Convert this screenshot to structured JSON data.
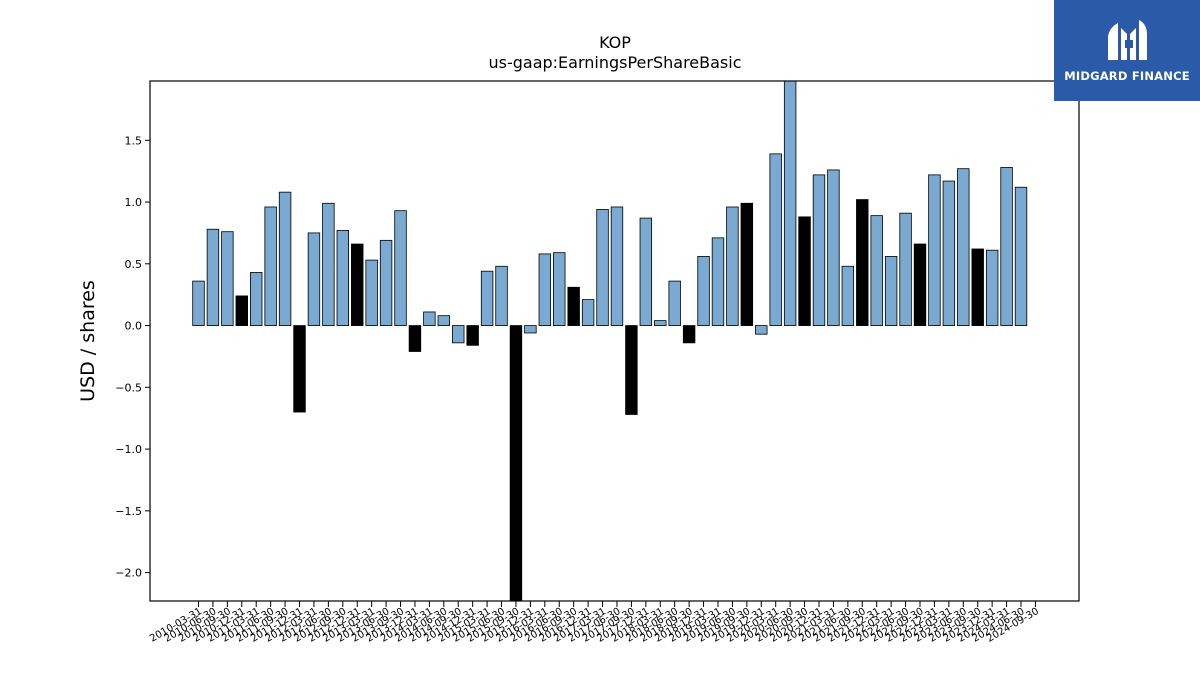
{
  "logo": {
    "name": "MIDGARD FINANCE",
    "color": "#2a5aa8"
  },
  "chart_data": {
    "type": "bar",
    "title": "KOP",
    "subtitle": "us-gaap:EarningsPerShareBasic",
    "xlabel": "",
    "ylabel": "USD / shares",
    "ylim": [
      -2.23,
      1.98
    ],
    "yticks": [
      -2.0,
      -1.5,
      -1.0,
      -0.5,
      0.0,
      0.5,
      1.0,
      1.5
    ],
    "ytick_labels": [
      "−2.0",
      "−1.5",
      "−1.0",
      "−0.5",
      "0.0",
      "0.5",
      "1.0",
      "1.5"
    ],
    "grid": false,
    "colors": {
      "quarterly": "#7aa9d1",
      "annual": "#000000",
      "edge": "#000000"
    },
    "categories": [
      "2010-03-31",
      "2010-06-30",
      "2010-09-30",
      "2010-12-31",
      "2011-03-31",
      "2011-06-30",
      "2011-09-30",
      "2011-12-31",
      "2012-03-31",
      "2012-06-30",
      "2012-09-30",
      "2012-12-31",
      "2013-03-31",
      "2013-06-30",
      "2013-09-30",
      "2013-12-31",
      "2014-03-31",
      "2014-06-30",
      "2014-09-30",
      "2014-12-31",
      "2015-03-31",
      "2015-06-30",
      "2015-09-30",
      "2015-12-31",
      "2016-03-31",
      "2016-06-30",
      "2016-09-30",
      "2016-12-31",
      "2017-03-31",
      "2017-06-30",
      "2017-09-30",
      "2017-12-31",
      "2018-03-31",
      "2018-06-30",
      "2018-09-30",
      "2018-12-31",
      "2019-03-31",
      "2019-06-30",
      "2019-09-30",
      "2019-12-31",
      "2020-03-31",
      "2020-06-30",
      "2020-09-30",
      "2020-12-31",
      "2021-03-31",
      "2021-06-30",
      "2021-09-30",
      "2021-12-31",
      "2022-03-31",
      "2022-06-30",
      "2022-09-30",
      "2022-12-31",
      "2023-03-31",
      "2023-06-30",
      "2023-09-30",
      "2023-12-31",
      "2024-03-31",
      "2024-06-30",
      "2024-09-30"
    ],
    "values": [
      0.36,
      0.78,
      0.76,
      0.24,
      0.43,
      0.96,
      1.08,
      -0.7,
      0.75,
      0.99,
      0.77,
      0.66,
      0.53,
      0.69,
      0.93,
      -0.21,
      0.11,
      0.08,
      -0.14,
      -0.16,
      0.44,
      0.48,
      -2.23,
      -0.06,
      0.58,
      0.59,
      0.31,
      0.21,
      0.94,
      0.96,
      -0.72,
      0.87,
      0.04,
      0.36,
      -0.14,
      0.56,
      0.71,
      0.96,
      0.99,
      -0.07,
      1.39,
      1.98,
      0.88,
      1.22,
      1.26,
      0.48,
      1.02,
      0.89,
      0.56,
      0.91,
      0.66,
      1.22,
      1.17,
      1.27,
      0.62,
      0.61,
      1.28,
      1.12,
      null
    ],
    "annual": [
      false,
      false,
      false,
      true,
      false,
      false,
      false,
      true,
      false,
      false,
      false,
      true,
      false,
      false,
      false,
      true,
      false,
      false,
      false,
      true,
      false,
      false,
      true,
      false,
      false,
      false,
      true,
      false,
      false,
      false,
      true,
      false,
      false,
      false,
      true,
      false,
      false,
      false,
      true,
      false,
      false,
      false,
      true,
      false,
      false,
      false,
      true,
      false,
      false,
      false,
      true,
      false,
      false,
      false,
      true,
      false,
      false,
      false,
      false
    ]
  }
}
